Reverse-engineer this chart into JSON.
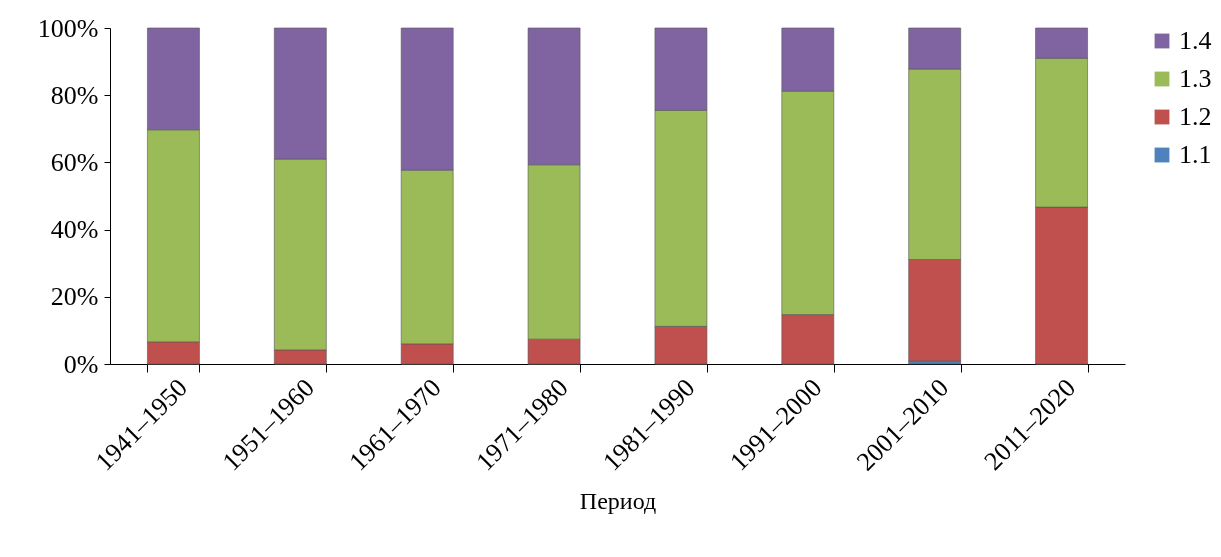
{
  "chart_data": {
    "type": "bar",
    "stacked": true,
    "xlabel": "Период",
    "categories": [
      "1941–1950",
      "1951–1960",
      "1961–1970",
      "1971–1980",
      "1981–1990",
      "1991–2000",
      "2001–2010",
      "2011–2020"
    ],
    "series": [
      {
        "name": "1.1",
        "color": "#4f81bd",
        "values": [
          0,
          0,
          0,
          0,
          0,
          0,
          0.9,
          0
        ]
      },
      {
        "name": "1.2",
        "color": "#c0504d",
        "values": [
          6.6,
          4.2,
          6.0,
          7.4,
          11.2,
          14.7,
          30.2,
          46.7
        ]
      },
      {
        "name": "1.3",
        "color": "#9bbb59",
        "values": [
          63.1,
          56.8,
          51.7,
          51.9,
          64.3,
          66.5,
          56.7,
          44.3
        ]
      },
      {
        "name": "1.4",
        "color": "#8064a2",
        "values": [
          30.3,
          39.0,
          42.3,
          40.7,
          24.5,
          18.8,
          12.2,
          9.0
        ]
      }
    ],
    "ylim": [
      0,
      100
    ],
    "yticks": [
      {
        "value": 0,
        "label": "0%"
      },
      {
        "value": 20,
        "label": "20%"
      },
      {
        "value": 40,
        "label": "40%"
      },
      {
        "value": 60,
        "label": "60%"
      },
      {
        "value": 80,
        "label": "80%"
      },
      {
        "value": 100,
        "label": "100%"
      }
    ],
    "legend": "right"
  }
}
